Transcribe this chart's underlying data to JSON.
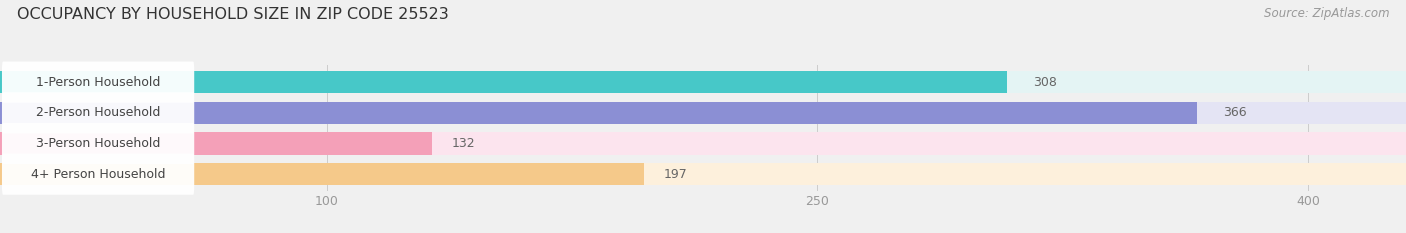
{
  "title": "OCCUPANCY BY HOUSEHOLD SIZE IN ZIP CODE 25523",
  "source": "Source: ZipAtlas.com",
  "categories": [
    "1-Person Household",
    "2-Person Household",
    "3-Person Household",
    "4+ Person Household"
  ],
  "values": [
    308,
    366,
    132,
    197
  ],
  "bar_colors": [
    "#47c8c8",
    "#8b8fd4",
    "#f4a0b8",
    "#f5c98a"
  ],
  "bg_colors": [
    "#e4f4f4",
    "#e4e4f4",
    "#fce4ee",
    "#fdf0dc"
  ],
  "xlim": [
    0,
    430
  ],
  "xticks": [
    100,
    250,
    400
  ],
  "background_color": "#f0f0f0",
  "bar_label_fontsize": 9,
  "value_fontsize": 9,
  "tick_fontsize": 9,
  "title_fontsize": 11.5,
  "source_fontsize": 8.5,
  "label_text_color": "#444444",
  "value_text_color": "#666666",
  "tick_color": "#999999",
  "title_color": "#333333",
  "source_color": "#999999"
}
